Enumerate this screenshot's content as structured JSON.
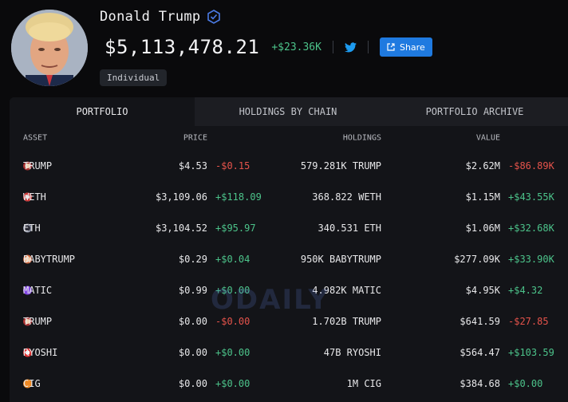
{
  "profile": {
    "name": "Donald Trump",
    "total_value": "$5,113,478.21",
    "total_change": "+$23.36K",
    "share_label": "Share",
    "entity_type": "Individual"
  },
  "tabs": [
    {
      "label": "PORTFOLIO",
      "active": true
    },
    {
      "label": "HOLDINGS BY CHAIN",
      "active": false
    },
    {
      "label": "PORTFOLIO ARCHIVE",
      "active": false
    }
  ],
  "columns": {
    "asset": "ASSET",
    "price": "PRICE",
    "holdings": "HOLDINGS",
    "value": "VALUE"
  },
  "rows": [
    {
      "asset": "TRUMP",
      "price": "$4.53",
      "price_change": "-$0.15",
      "holdings": "579.281K TRUMP",
      "value": "$2.62M",
      "value_change": "-$86.89K"
    },
    {
      "asset": "WETH",
      "price": "$3,109.06",
      "price_change": "+$118.09",
      "holdings": "368.822 WETH",
      "value": "$1.15M",
      "value_change": "+$43.55K"
    },
    {
      "asset": "ETH",
      "price": "$3,104.52",
      "price_change": "+$95.97",
      "holdings": "340.531 ETH",
      "value": "$1.06M",
      "value_change": "+$32.68K"
    },
    {
      "asset": "BABYTRUMP",
      "price": "$0.29",
      "price_change": "+$0.04",
      "holdings": "950K BABYTRUMP",
      "value": "$277.09K",
      "value_change": "+$33.90K"
    },
    {
      "asset": "MATIC",
      "price": "$0.99",
      "price_change": "+$0.00",
      "holdings": "4.982K MATIC",
      "value": "$4.95K",
      "value_change": "+$4.32"
    },
    {
      "asset": "TRUMP",
      "price": "$0.00",
      "price_change": "-$0.00",
      "holdings": "1.702B TRUMP",
      "value": "$641.59",
      "value_change": "-$27.85"
    },
    {
      "asset": "RYOSHI",
      "price": "$0.00",
      "price_change": "+$0.00",
      "holdings": "47B RYOSHI",
      "value": "$564.47",
      "value_change": "+$103.59"
    },
    {
      "asset": "CIG",
      "price": "$0.00",
      "price_change": "+$0.00",
      "holdings": "1M CIG",
      "value": "$384.68",
      "value_change": "+$0.00"
    }
  ],
  "watermark": "ODAILY",
  "colors": {
    "positive": "#4cc38a",
    "negative": "#e5534b",
    "accent": "#1f7ae0"
  },
  "icons": {
    "verified": "verified-badge-icon",
    "twitter": "twitter-icon",
    "share": "external-link-icon"
  }
}
